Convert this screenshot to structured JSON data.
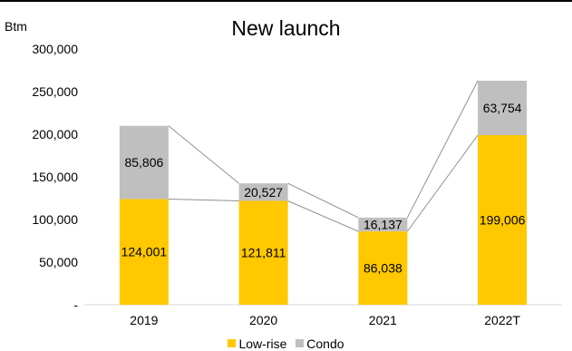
{
  "colors": {
    "lowrise": "#FFC800",
    "condo": "#BFBFBF",
    "axis": "#D9D9D9",
    "connector": "#909090"
  },
  "chart_data": {
    "type": "bar",
    "stacked": true,
    "title": "New launch",
    "unit_label": "Btm",
    "categories": [
      "2019",
      "2020",
      "2021",
      "2022T"
    ],
    "series": [
      {
        "name": "Low-rise",
        "values": [
          124001,
          121811,
          86038,
          199006
        ],
        "labels": [
          "124,001",
          "121,811",
          "86,038",
          "199,006"
        ]
      },
      {
        "name": "Condo",
        "values": [
          85806,
          20527,
          16137,
          63754
        ],
        "labels": [
          "85,806",
          "20,527",
          "16,137",
          "63,754"
        ]
      }
    ],
    "ylim": [
      0,
      300000
    ],
    "yticks": [
      {
        "value": 0,
        "label": "-"
      },
      {
        "value": 50000,
        "label": "50,000"
      },
      {
        "value": 100000,
        "label": "100,000"
      },
      {
        "value": 150000,
        "label": "150,000"
      },
      {
        "value": 200000,
        "label": "200,000"
      },
      {
        "value": 250000,
        "label": "250,000"
      },
      {
        "value": 300000,
        "label": "300,000"
      }
    ],
    "grid": false,
    "legend_position": "bottom",
    "series_lines": true
  }
}
